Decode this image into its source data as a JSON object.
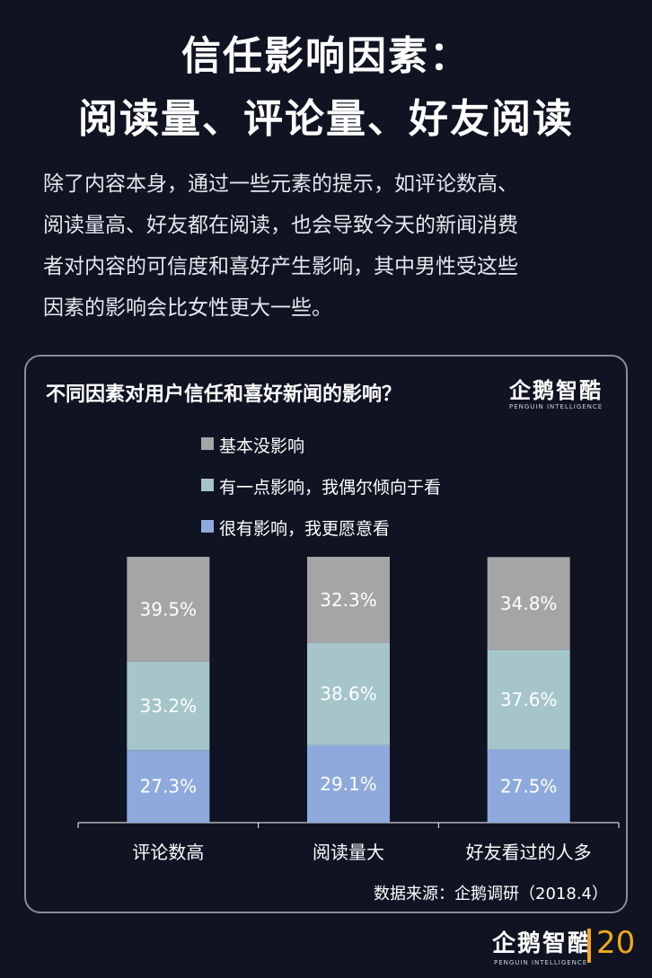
{
  "header": {
    "title_line1": "信任影响因素：",
    "title_line2": "阅读量、评论量、好友阅读"
  },
  "intro": [
    "除了内容本身，通过一些元素的提示，如评论数高、",
    "阅读量高、好友都在阅读，也会导致今天的新闻消费",
    "者对内容的可信度和喜好产生影响，其中男性受这些",
    "因素的影响会比女性更大一些。"
  ],
  "card": {
    "title": "不同因素对用户信任和喜好新闻的影响？",
    "logo_cn": "企鹅智酷",
    "logo_en": "PENGUIN INTELLIGENCE",
    "source": "数据来源：企鹅调研（2018.4）"
  },
  "chart_data": {
    "type": "bar",
    "stacked": true,
    "categories": [
      "评论数高",
      "阅读量大",
      "好友看过的人多"
    ],
    "series": [
      {
        "name": "很有影响，我更愿意看",
        "values": [
          27.3,
          29.1,
          27.5
        ],
        "labels": [
          "27.3%",
          "29.1%",
          "27.5%"
        ],
        "color": "#8eaadc"
      },
      {
        "name": "有一点影响，我偶尔倾向于看",
        "values": [
          33.2,
          38.6,
          37.6
        ],
        "labels": [
          "33.2%",
          "38.6%",
          "37.6%"
        ],
        "color": "#a5c5ca"
      },
      {
        "name": "基本没影响",
        "values": [
          39.5,
          32.3,
          34.8
        ],
        "labels": [
          "39.5%",
          "32.3%",
          "34.8%"
        ],
        "color": "#a5a5a5"
      }
    ],
    "ylim": [
      0,
      100
    ],
    "legend_position": "top",
    "grid": false
  },
  "footer": {
    "logo_cn": "企鹅智酷",
    "logo_en": "PENGUIN INTELLIGENCE",
    "page_number": "20"
  },
  "colors": {
    "background": "#0f1322",
    "accent": "#f3a81b"
  }
}
